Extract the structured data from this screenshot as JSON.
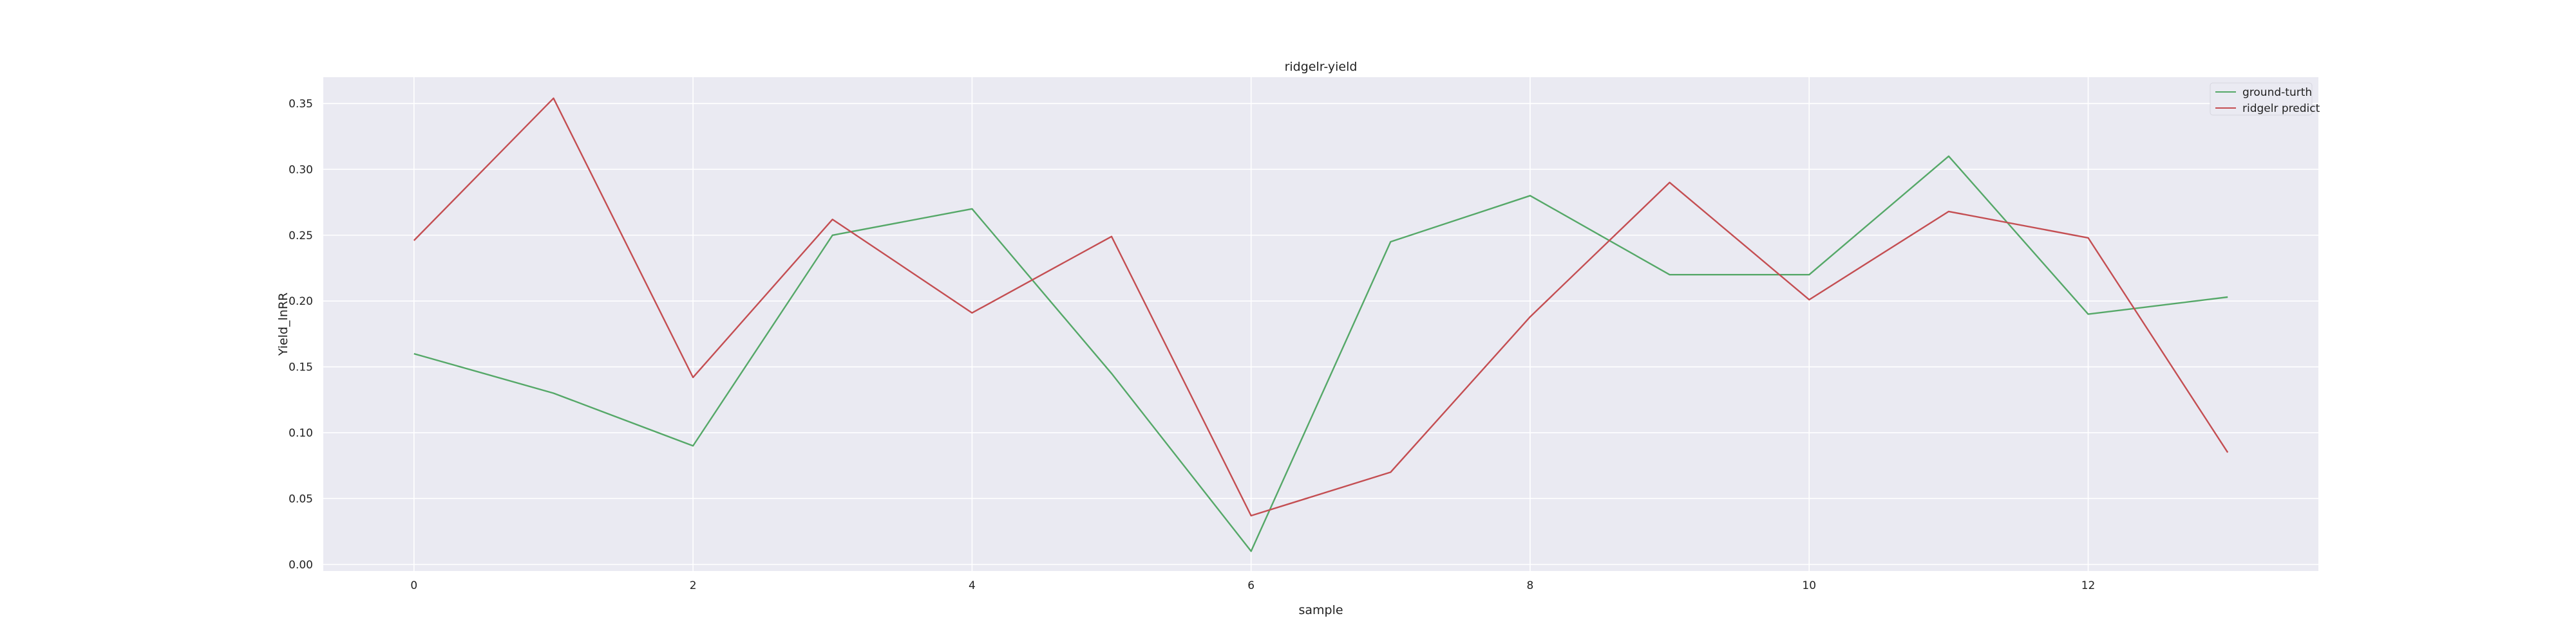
{
  "chart_data": {
    "type": "line",
    "title": "ridgelr-yield",
    "xlabel": "sample",
    "ylabel": "Yield_lnRR",
    "x": [
      0,
      1,
      2,
      3,
      4,
      5,
      6,
      7,
      8,
      9,
      10,
      11,
      12,
      13
    ],
    "xlim": [
      -0.65,
      13.65
    ],
    "ylim": [
      -0.005,
      0.37
    ],
    "xticks": [
      0,
      2,
      4,
      6,
      8,
      10,
      12
    ],
    "yticks": [
      0.0,
      0.05,
      0.1,
      0.15,
      0.2,
      0.25,
      0.3,
      0.35
    ],
    "ytick_labels": [
      "0.00",
      "0.05",
      "0.10",
      "0.15",
      "0.20",
      "0.25",
      "0.30",
      "0.35"
    ],
    "grid": true,
    "legend_position": "top-right",
    "series": [
      {
        "name": "ground-turth",
        "color": "#55a868",
        "values": [
          0.16,
          0.13,
          0.09,
          0.25,
          0.27,
          0.145,
          0.01,
          0.245,
          0.28,
          0.22,
          0.22,
          0.31,
          0.19,
          0.203
        ]
      },
      {
        "name": "ridgelr predict",
        "color": "#c44e52",
        "values": [
          0.246,
          0.354,
          0.142,
          0.262,
          0.191,
          0.249,
          0.037,
          0.07,
          0.188,
          0.29,
          0.201,
          0.268,
          0.248,
          0.085
        ]
      }
    ]
  }
}
